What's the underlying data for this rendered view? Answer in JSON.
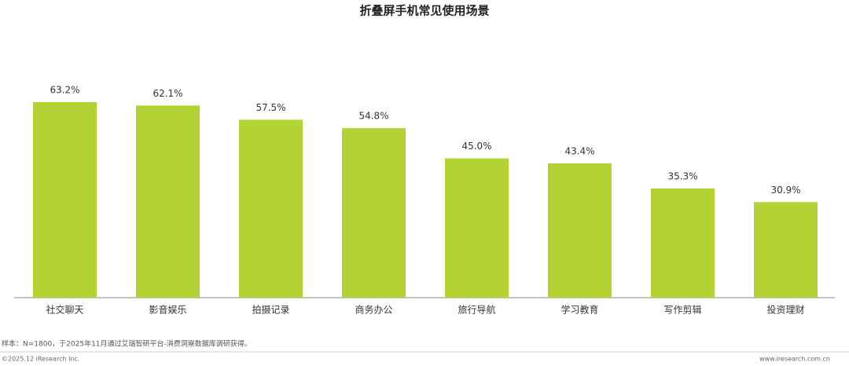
{
  "chart_data": {
    "type": "bar",
    "title": "折叠屏手机常见使用场景",
    "categories": [
      "社交聊天",
      "影音娱乐",
      "拍摄记录",
      "商务办公",
      "旅行导航",
      "学习教育",
      "写作剪辑",
      "投资理财"
    ],
    "values": [
      63.2,
      62.1,
      57.5,
      54.8,
      45.0,
      43.4,
      35.3,
      30.9
    ],
    "value_labels": [
      "63.2%",
      "62.1%",
      "57.5%",
      "54.8%",
      "45.0%",
      "43.4%",
      "35.3%",
      "30.9%"
    ],
    "color": "#b3d334",
    "note": "样本：N=1800，于2025年11月通过艾瑞智研平台-消费洞察数据库调研获得。"
  },
  "footer": {
    "left": "©2025.12 iResearch Inc.",
    "right": "www.iresearch.com.cn"
  }
}
